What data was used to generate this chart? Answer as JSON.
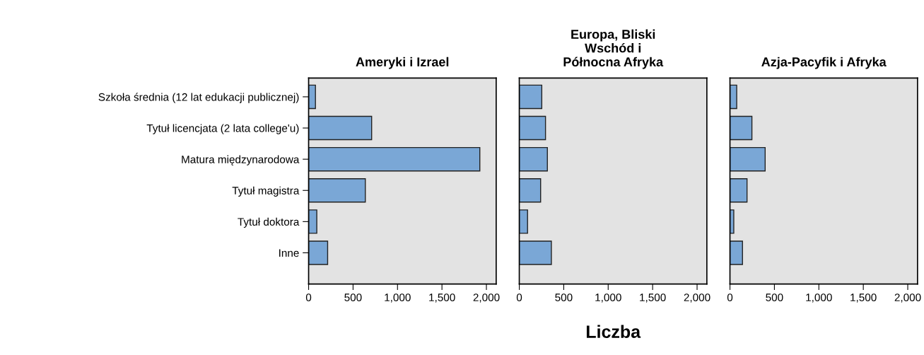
{
  "chart_data": [
    {
      "type": "bar",
      "orientation": "horizontal",
      "title": "Ameryki i Izrael",
      "categories": [
        "Szkoła średnia (12 lat edukacji publicznej)",
        "Tytuł licencjata (2 lata college'u)",
        "Matura międzynarodowa",
        "Tytuł magistra",
        "Tytuł doktora",
        "Inne"
      ],
      "values": [
        77,
        709,
        1926,
        638,
        92,
        214
      ],
      "color": "#7aa7d6",
      "xlim": [
        0,
        2110
      ],
      "xticks": [
        0,
        500,
        {
          "value": 1000,
          "label": "1,000"
        },
        {
          "value": 1500,
          "label": "1,500"
        },
        {
          "value": 2000,
          "label": "2,000"
        }
      ],
      "grid": false,
      "legend": false
    },
    {
      "type": "bar",
      "orientation": "horizontal",
      "title": "Europa, Bliski\nWschód i\nPółnocna Afryka",
      "xlabel": "Liczba",
      "categories": [
        null,
        null,
        null,
        null,
        null,
        null
      ],
      "values": [
        253,
        295,
        316,
        240,
        93,
        361
      ],
      "color": "#7aa7d6",
      "xlim": [
        0,
        2110
      ],
      "xticks": [
        0,
        500,
        {
          "value": 1000,
          "label": "1,000"
        },
        {
          "value": 1500,
          "label": "1,500"
        },
        {
          "value": 2000,
          "label": "2,000"
        }
      ],
      "tick_labels": "x",
      "grid": false,
      "legend": false
    },
    {
      "type": "bar",
      "orientation": "horizontal",
      "title": "Azja-Pacyfik i Afryka",
      "categories": [
        null,
        null,
        null,
        null,
        null,
        null
      ],
      "values": [
        76,
        247,
        396,
        192,
        43,
        141
      ],
      "color": "#7aa7d6",
      "xlim": [
        0,
        2110
      ],
      "xticks": [
        0,
        500,
        {
          "value": 1000,
          "label": "1,000"
        },
        {
          "value": 1500,
          "label": "1,500"
        },
        {
          "value": 2000,
          "label": "2,000"
        }
      ],
      "tick_labels": "x",
      "grid": false,
      "legend": false
    }
  ]
}
